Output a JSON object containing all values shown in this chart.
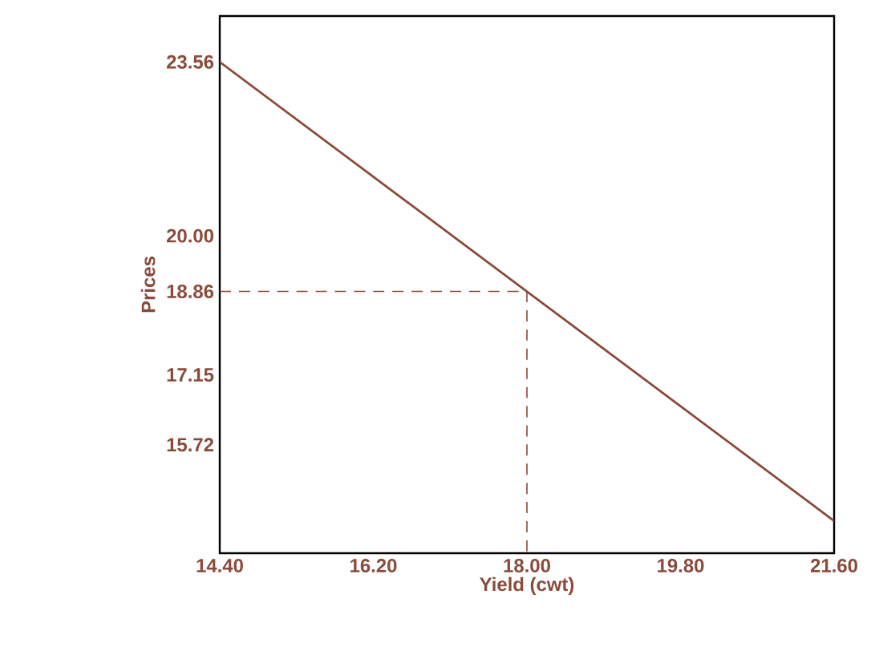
{
  "chart_data": {
    "type": "line",
    "xlabel": "Yield (cwt)",
    "ylabel": "Prices",
    "xlim": [
      14.4,
      21.6
    ],
    "xticks": [
      {
        "value": 14.4,
        "label": "14.40"
      },
      {
        "value": 16.2,
        "label": "16.20"
      },
      {
        "value": 18.0,
        "label": "18.00"
      },
      {
        "value": 19.8,
        "label": "19.80"
      },
      {
        "value": 21.6,
        "label": "21.60"
      }
    ],
    "ylim": [
      13.5,
      24.5
    ],
    "yticks": [
      {
        "value": 15.72,
        "label": "15.72"
      },
      {
        "value": 17.15,
        "label": "17.15"
      },
      {
        "value": 18.86,
        "label": "18.86"
      },
      {
        "value": 20.0,
        "label": "20.00"
      },
      {
        "value": 23.56,
        "label": "23.56"
      }
    ],
    "series": [
      {
        "color": "#8b4a3a",
        "line_style": "solid",
        "x": [
          14.4,
          18.0,
          21.6
        ],
        "values": [
          23.56,
          18.86,
          14.16
        ]
      },
      {
        "color": "#8b4a3a",
        "line_style": "dashed",
        "x": [
          14.4,
          18.0,
          18.0
        ],
        "values": [
          18.86,
          18.86,
          13.5
        ]
      }
    ]
  }
}
